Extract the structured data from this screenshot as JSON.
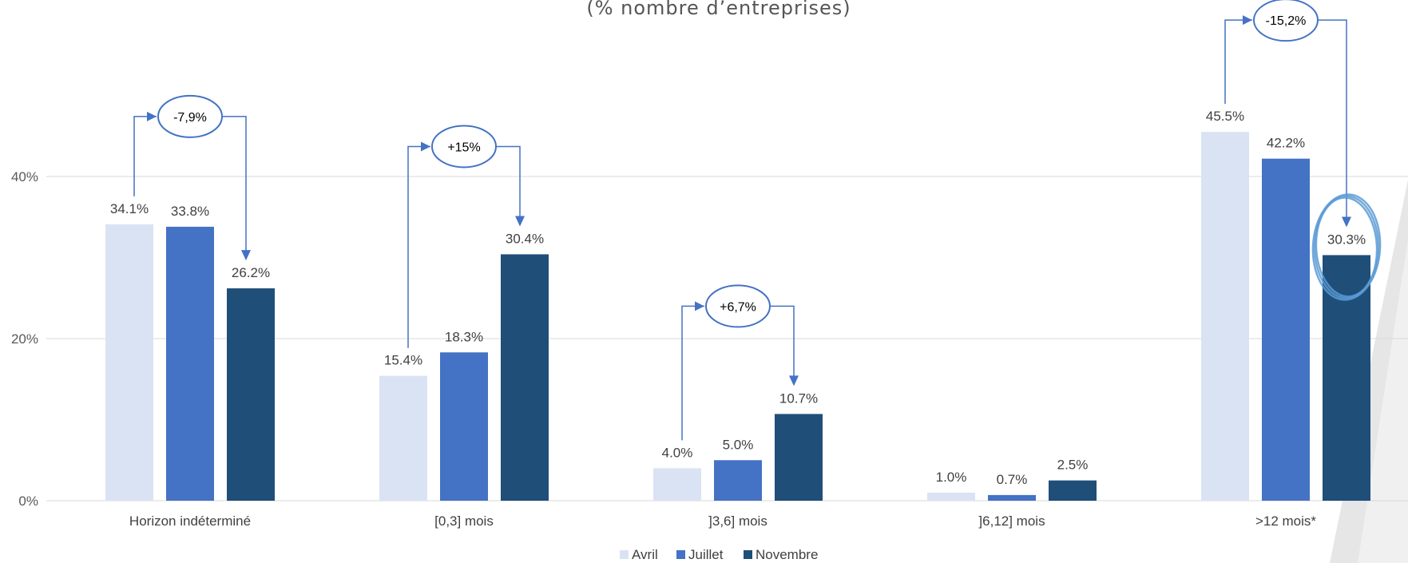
{
  "chart_data": {
    "type": "bar",
    "subtitle": "(% nombre d’entreprises)",
    "categories": [
      "Horizon indéterminé",
      "[0,3] mois",
      "]3,6] mois",
      "]6,12] mois",
      ">12 mois*"
    ],
    "series": [
      {
        "name": "Avril",
        "color": "#dae3f3",
        "values": [
          34.1,
          15.4,
          4.0,
          1.0,
          45.5
        ],
        "labels": [
          "34.1%",
          "15.4%",
          "4.0%",
          "1.0%",
          "45.5%"
        ]
      },
      {
        "name": "Juillet",
        "color": "#4472c4",
        "values": [
          33.8,
          18.3,
          5.0,
          0.7,
          42.2
        ],
        "labels": [
          "33.8%",
          "18.3%",
          "5.0%",
          "0.7%",
          "42.2%"
        ]
      },
      {
        "name": "Novembre",
        "color": "#1f4e79",
        "values": [
          26.2,
          30.4,
          10.7,
          2.5,
          30.3
        ],
        "labels": [
          "26.2%",
          "30.4%",
          "10.7%",
          "2.5%",
          "30.3%"
        ]
      }
    ],
    "ylim": [
      0,
      50
    ],
    "yticks": [
      0,
      20,
      40
    ],
    "ytick_labels": [
      "0%",
      "20%",
      "40%"
    ],
    "grid": true,
    "legend_position": "bottom",
    "annotations": [
      {
        "category": 0,
        "text": "-7,9%"
      },
      {
        "category": 1,
        "text": "+15%"
      },
      {
        "category": 2,
        "text": "+6,7%"
      },
      {
        "category": 4,
        "text": "-15,2%"
      }
    ],
    "highlight": {
      "category": 4,
      "series": 2,
      "style": "hand-drawn circle"
    },
    "colors": {
      "grid": "#d9d9d9",
      "arrow": "#4472c4",
      "highlight": "#5b9bd5"
    }
  }
}
